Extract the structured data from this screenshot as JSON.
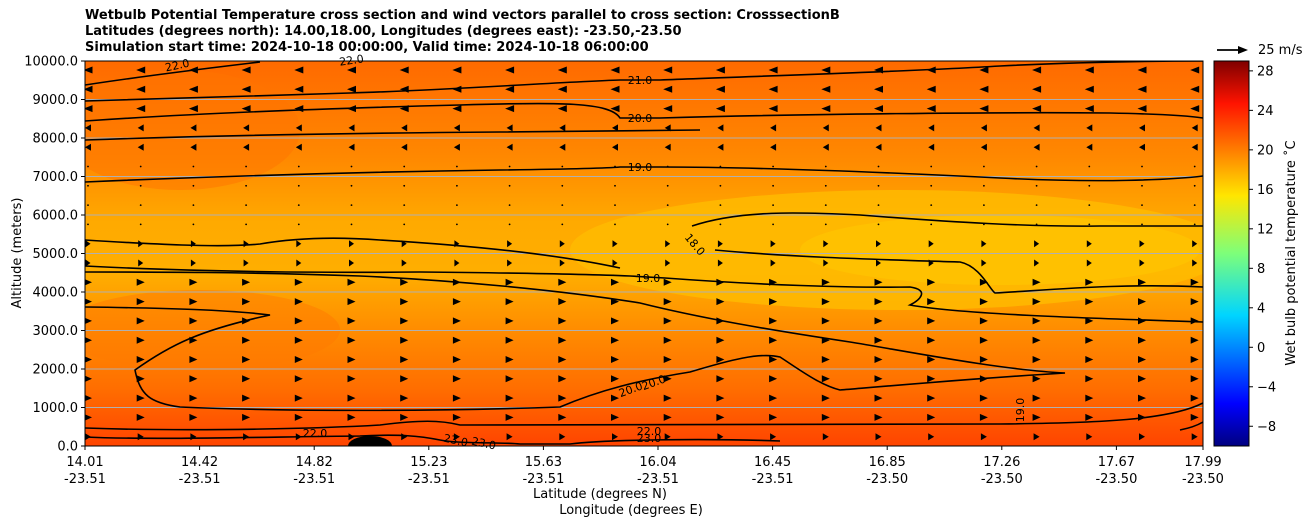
{
  "title_lines": [
    "Wetbulb Potential Temperature cross section and wind vectors parallel to cross section: CrosssectionB",
    "Latitudes (degrees north): 14.00,18.00, Longitudes (degrees east): -23.50,-23.50",
    "Simulation start time: 2024-10-18 00:00:00, Valid time: 2024-10-18 06:00:00"
  ],
  "reference_vector_label": "25 m/s",
  "chart_data": {
    "type": "heatmap",
    "subtype": "cross-section contour with wind vectors",
    "ylabel": "Altitude (meters)",
    "xlabel_lines": [
      "Latitude (degrees N)",
      "Longitude (degrees E)"
    ],
    "ylim": [
      0,
      10000
    ],
    "y_ticks": [
      0,
      1000,
      2000,
      3000,
      4000,
      5000,
      6000,
      7000,
      8000,
      9000,
      10000
    ],
    "y_tick_labels": [
      "0.0",
      "1000.0",
      "2000.0",
      "3000.0",
      "4000.0",
      "5000.0",
      "6000.0",
      "7000.0",
      "8000.0",
      "9000.0",
      "10000.0"
    ],
    "x_ticks": [
      {
        "lat": "14.01",
        "lon": "-23.51"
      },
      {
        "lat": "14.42",
        "lon": "-23.51"
      },
      {
        "lat": "14.82",
        "lon": "-23.51"
      },
      {
        "lat": "15.23",
        "lon": "-23.51"
      },
      {
        "lat": "15.63",
        "lon": "-23.51"
      },
      {
        "lat": "16.04",
        "lon": "-23.51"
      },
      {
        "lat": "16.45",
        "lon": "-23.51"
      },
      {
        "lat": "16.85",
        "lon": "-23.50"
      },
      {
        "lat": "17.26",
        "lon": "-23.50"
      },
      {
        "lat": "17.67",
        "lon": "-23.50"
      },
      {
        "lat": "17.99",
        "lon": "-23.50"
      }
    ],
    "grid": "horizontal",
    "colorbar": {
      "label": "Wet bulb potential temperature $^\\circ$C",
      "range": [
        -10,
        29
      ],
      "ticks": [
        -8,
        -4,
        0,
        4,
        8,
        12,
        16,
        20,
        24,
        28
      ],
      "tick_labels": [
        "−8",
        "−4",
        "0",
        "4",
        "8",
        "12",
        "16",
        "20",
        "24",
        "28"
      ],
      "colormap": "jet"
    },
    "contour_labels": [
      "22.0",
      "22.0",
      "21.0",
      "20.0",
      "19.0",
      "18.0",
      "19.0",
      "20.0",
      "20.0",
      "22.0",
      "22.0",
      "23.0",
      "23.0",
      "23.0",
      "19.0"
    ]
  }
}
